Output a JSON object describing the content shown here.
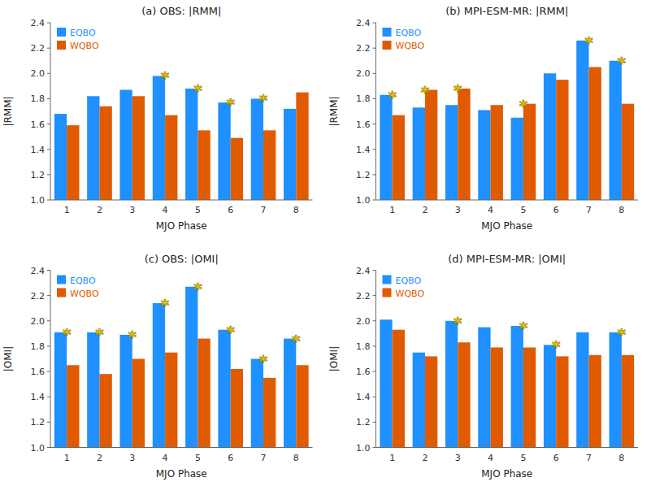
{
  "chart_data": [
    {
      "type": "bar",
      "title": "(a) OBS:  |RMM|",
      "x_label": "MJO Phase",
      "y_label": "|RMM|",
      "categories": [
        "1",
        "2",
        "3",
        "4",
        "5",
        "6",
        "7",
        "8"
      ],
      "series": [
        {
          "name": "EQBO",
          "color": "#1E90FF",
          "values": [
            1.68,
            1.82,
            1.87,
            1.98,
            1.88,
            1.77,
            1.8,
            1.72
          ]
        },
        {
          "name": "WQBO",
          "color": "#E05A00",
          "values": [
            1.59,
            1.74,
            1.82,
            1.67,
            1.55,
            1.49,
            1.55,
            1.85
          ]
        }
      ],
      "annotations": [
        {
          "text": "*",
          "category": "4",
          "color": "#FFD700"
        },
        {
          "text": "*",
          "category": "5",
          "color": "#FFD700"
        },
        {
          "text": "*",
          "category": "6",
          "color": "#FFD700"
        },
        {
          "text": "*",
          "category": "7",
          "color": "#FFD700"
        }
      ],
      "ylim": [
        1.0,
        2.4
      ],
      "yticks": [
        {
          "value": 1.0,
          "label": "1.0"
        },
        1.2,
        1.4,
        1.6,
        1.8,
        {
          "value": 2.0,
          "label": "2.0"
        },
        2.2,
        2.4
      ],
      "grid": false,
      "legend": "upper left"
    },
    {
      "type": "bar",
      "title": "(b) MPI-ESM-MR:  |RMM|",
      "x_label": "MJO Phase",
      "y_label": "|RMM|",
      "categories": [
        "1",
        "2",
        "3",
        "4",
        "5",
        "6",
        "7",
        "8"
      ],
      "series": [
        {
          "name": "EQBO",
          "color": "#1E90FF",
          "values": [
            1.83,
            1.73,
            1.75,
            1.71,
            1.65,
            2.0,
            2.26,
            2.1
          ]
        },
        {
          "name": "WQBO",
          "color": "#E05A00",
          "values": [
            1.67,
            1.87,
            1.88,
            1.75,
            1.76,
            1.95,
            2.05,
            1.76
          ]
        }
      ],
      "annotations": [
        {
          "text": "*",
          "category": "1",
          "color": "#FFD700"
        },
        {
          "text": "*",
          "category": "2",
          "color": "#FFD700"
        },
        {
          "text": "*",
          "category": "3",
          "color": "#FFD700"
        },
        {
          "text": "*",
          "category": "5",
          "color": "#FFD700"
        },
        {
          "text": "*",
          "category": "7",
          "color": "#FFD700"
        },
        {
          "text": "*",
          "category": "8",
          "color": "#FFD700"
        }
      ],
      "ylim": [
        1.0,
        2.4
      ],
      "yticks": [
        {
          "value": 1.0,
          "label": "1.0"
        },
        1.2,
        1.4,
        1.6,
        1.8,
        {
          "value": 2.0,
          "label": "2.0"
        },
        2.2,
        2.4
      ],
      "grid": false,
      "legend": "upper left"
    },
    {
      "type": "bar",
      "title": "(c) OBS:  |OMI|",
      "x_label": "MJO Phase",
      "y_label": "|OMI|",
      "categories": [
        "1",
        "2",
        "3",
        "4",
        "5",
        "6",
        "7",
        "8"
      ],
      "series": [
        {
          "name": "EQBO",
          "color": "#1E90FF",
          "values": [
            1.91,
            1.91,
            1.89,
            2.14,
            2.27,
            1.93,
            1.7,
            1.86
          ]
        },
        {
          "name": "WQBO",
          "color": "#E05A00",
          "values": [
            1.65,
            1.58,
            1.7,
            1.75,
            1.86,
            1.62,
            1.55,
            1.65
          ]
        }
      ],
      "annotations": [
        {
          "text": "*",
          "category": "1",
          "color": "#FFD700"
        },
        {
          "text": "*",
          "category": "2",
          "color": "#FFD700"
        },
        {
          "text": "*",
          "category": "3",
          "color": "#FFD700"
        },
        {
          "text": "*",
          "category": "4",
          "color": "#FFD700"
        },
        {
          "text": "*",
          "category": "5",
          "color": "#FFD700"
        },
        {
          "text": "*",
          "category": "6",
          "color": "#FFD700"
        },
        {
          "text": "*",
          "category": "7",
          "color": "#FFD700"
        },
        {
          "text": "*",
          "category": "8",
          "color": "#FFD700"
        }
      ],
      "ylim": [
        1.0,
        2.4
      ],
      "yticks": [
        {
          "value": 1.0,
          "label": "1.0"
        },
        1.2,
        1.4,
        1.6,
        1.8,
        {
          "value": 2.0,
          "label": "2.0"
        },
        2.2,
        2.4
      ],
      "grid": false,
      "legend": "upper left"
    },
    {
      "type": "bar",
      "title": "(d) MPI-ESM-MR:  |OMI|",
      "x_label": "MJO Phase",
      "y_label": "|OMI|",
      "categories": [
        "1",
        "2",
        "3",
        "4",
        "5",
        "6",
        "7",
        "8"
      ],
      "series": [
        {
          "name": "EQBO",
          "color": "#1E90FF",
          "values": [
            2.01,
            1.75,
            2.0,
            1.95,
            1.96,
            1.81,
            1.91,
            1.91
          ]
        },
        {
          "name": "WQBO",
          "color": "#E05A00",
          "values": [
            1.93,
            1.72,
            1.83,
            1.79,
            1.79,
            1.72,
            1.73,
            1.73
          ]
        }
      ],
      "annotations": [
        {
          "text": "*",
          "category": "3",
          "color": "#FFD700"
        },
        {
          "text": "*",
          "category": "5",
          "color": "#FFD700"
        },
        {
          "text": "*",
          "category": "6",
          "color": "#FFD700"
        },
        {
          "text": "*",
          "category": "8",
          "color": "#FFD700"
        }
      ],
      "ylim": [
        1.0,
        2.4
      ],
      "yticks": [
        {
          "value": 1.0,
          "label": "1.0"
        },
        1.2,
        1.4,
        1.6,
        1.8,
        {
          "value": 2.0,
          "label": "2.0"
        },
        2.2,
        2.4
      ],
      "grid": false,
      "legend": "upper left"
    }
  ]
}
